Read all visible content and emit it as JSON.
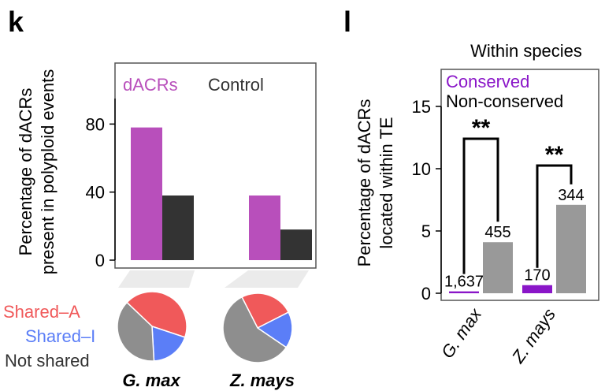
{
  "panels": {
    "k": {
      "letter": "k"
    },
    "l": {
      "letter": "l"
    }
  },
  "chart_data": [
    {
      "type": "bar",
      "panel": "k",
      "ylabel_lines": [
        "Percentage of dACRs",
        "present in polyploid events"
      ],
      "ylim": [
        0,
        95
      ],
      "yticks": [
        0,
        40,
        80
      ],
      "categories": [
        "G. max",
        "Z. mays"
      ],
      "series": [
        {
          "name": "dACRs",
          "color": "#b84fbb",
          "values": [
            78,
            38
          ]
        },
        {
          "name": "Control",
          "color": "#333333",
          "values": [
            38,
            18
          ]
        }
      ],
      "legend_position": "top-left",
      "grid": false
    },
    {
      "type": "pie",
      "panel": "k",
      "legend": [
        "Shared–A",
        "Shared–I",
        "Not shared"
      ],
      "colors": [
        "#f0595a",
        "#5b7ef7",
        "#8e8e8e"
      ],
      "pies": [
        {
          "name": "G. max",
          "values": [
            43,
            19,
            38
          ]
        },
        {
          "name": "Z. mays",
          "values": [
            25,
            17,
            58
          ]
        }
      ]
    },
    {
      "type": "bar",
      "panel": "l",
      "title": "Within species",
      "ylabel_lines": [
        "Percentage of dACRs",
        "located within TE"
      ],
      "ylim": [
        0,
        18
      ],
      "yticks": [
        0,
        5,
        10,
        15
      ],
      "categories": [
        "G. max",
        "Z. mays"
      ],
      "series": [
        {
          "name": "Conserved",
          "color": "#8a16c8",
          "values": [
            0.15,
            0.65
          ],
          "labels": [
            "1,637",
            "170"
          ]
        },
        {
          "name": "Non-conserved",
          "color": "#999999",
          "values": [
            4.1,
            7.1
          ],
          "labels": [
            "455",
            "344"
          ]
        }
      ],
      "significance": [
        "**",
        "**"
      ],
      "legend_position": "top-left",
      "grid": false
    }
  ]
}
